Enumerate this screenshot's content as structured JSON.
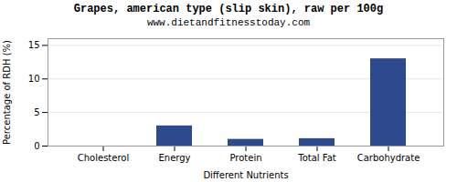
{
  "chart_data": {
    "type": "bar",
    "title": "Grapes, american type (slip skin), raw per 100g",
    "subtitle": "www.dietandfitnesstoday.com",
    "xlabel": "Different Nutrients",
    "ylabel": "Percentage of RDH (%)",
    "categories": [
      "Cholesterol",
      "Energy",
      "Protein",
      "Total Fat",
      "Carbohydrate"
    ],
    "values": [
      0,
      3.0,
      1.0,
      1.1,
      13.0
    ],
    "color": "#2e4a8e",
    "ylim": [
      0,
      16
    ],
    "yticks": [
      0,
      5,
      10,
      15
    ],
    "grid": true
  }
}
